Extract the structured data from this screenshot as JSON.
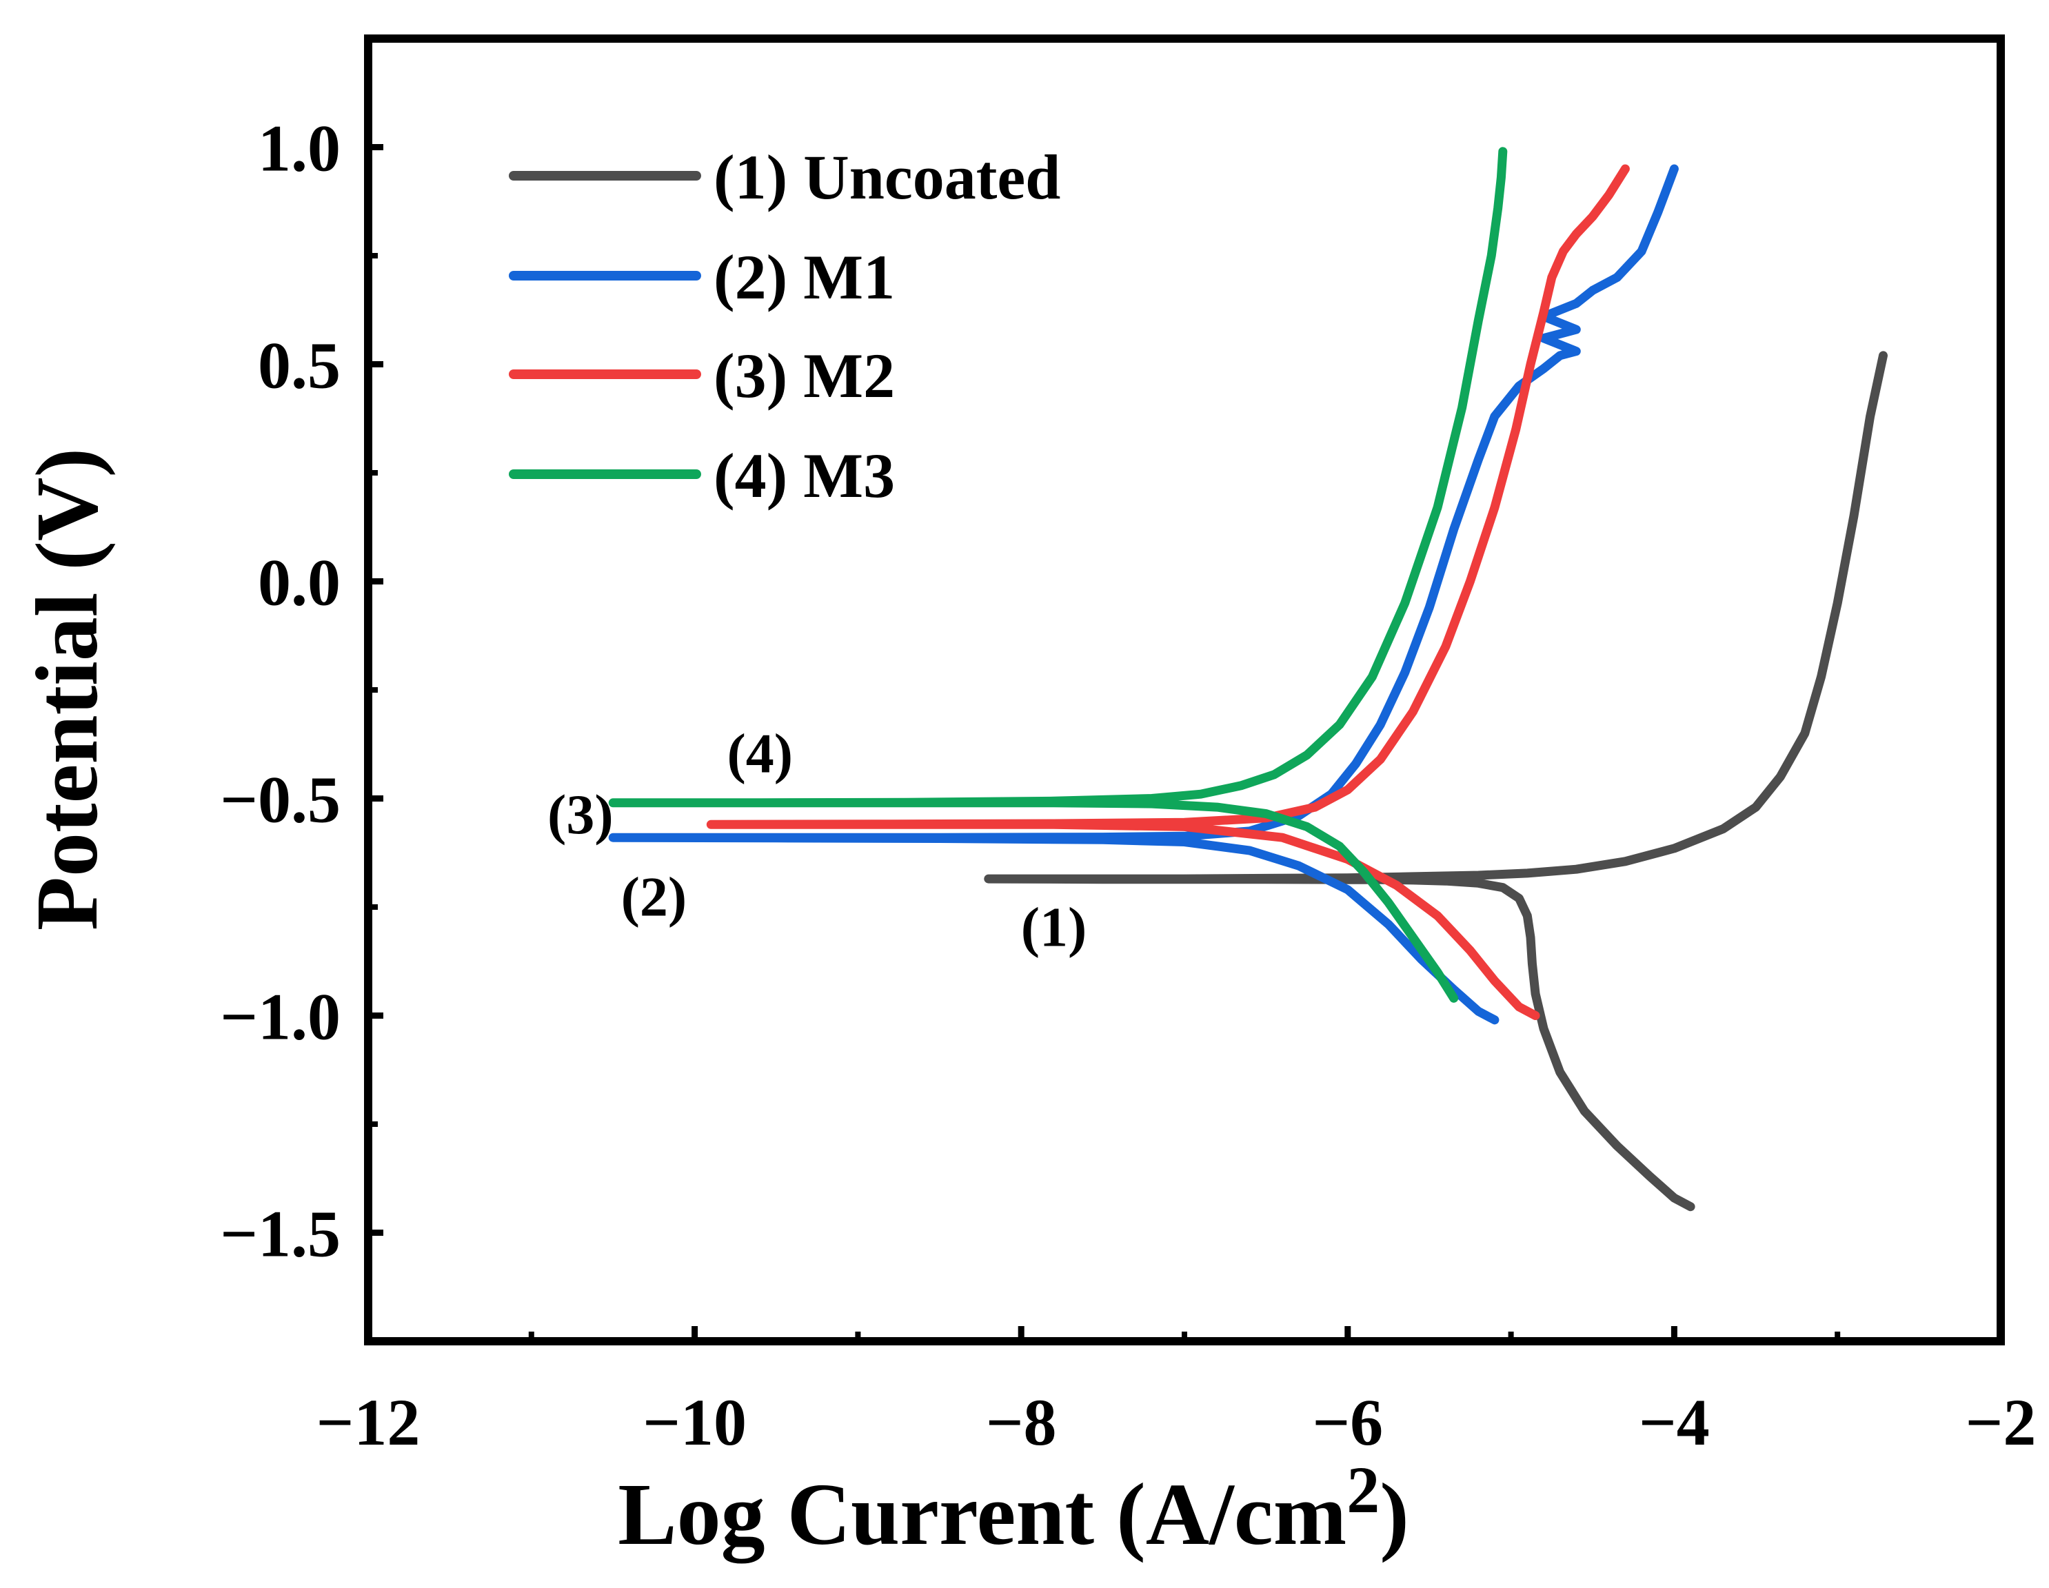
{
  "chart_data": {
    "type": "line",
    "title": "",
    "xlabel": "Log Current (A/cm",
    "xlabel_sup": "2",
    "xlabel_close": ")",
    "ylabel": "Potential (V)",
    "xlim": [
      -12,
      -2
    ],
    "ylim": [
      -1.75,
      1.25
    ],
    "x_ticks": [
      -12,
      -10,
      -8,
      -6,
      -4,
      -2
    ],
    "x_tick_labels": [
      "−12",
      "−10",
      "−8",
      "−6",
      "−4",
      "−2"
    ],
    "y_ticks": [
      1.0,
      0.5,
      0.0,
      -0.5,
      -1.0,
      -1.5
    ],
    "y_tick_labels": [
      "1.0",
      "0.5",
      "0.0",
      "−0.5",
      "−1.0",
      "−1.5"
    ],
    "grid": false,
    "legend_position": "top-left",
    "series": [
      {
        "name": "(1) Uncoated",
        "color": "#4d4d4d",
        "annotation": "(1)",
        "x": [
          -3.9,
          -4.0,
          -4.15,
          -4.35,
          -4.55,
          -4.7,
          -4.8,
          -4.85,
          -4.87,
          -4.88,
          -4.9,
          -4.95,
          -5.05,
          -5.2,
          -5.4,
          -5.6,
          -5.8,
          -6.0,
          -6.5,
          -7.0,
          -7.5,
          -8.2,
          -7.5,
          -7.0,
          -6.5,
          -6.0,
          -5.6,
          -5.2,
          -4.9,
          -4.6,
          -4.3,
          -4.0,
          -3.7,
          -3.5,
          -3.35,
          -3.2,
          -3.1,
          -3.0,
          -2.9,
          -2.8,
          -2.72
        ],
        "y": [
          -1.44,
          -1.42,
          -1.37,
          -1.3,
          -1.22,
          -1.13,
          -1.03,
          -0.95,
          -0.88,
          -0.82,
          -0.77,
          -0.73,
          -0.705,
          -0.695,
          -0.69,
          -0.688,
          -0.687,
          -0.687,
          -0.686,
          -0.686,
          -0.686,
          -0.685,
          -0.685,
          -0.685,
          -0.684,
          -0.683,
          -0.68,
          -0.677,
          -0.672,
          -0.663,
          -0.645,
          -0.615,
          -0.57,
          -0.52,
          -0.45,
          -0.35,
          -0.22,
          -0.05,
          0.15,
          0.38,
          0.52
        ]
      },
      {
        "name": "(2) M1",
        "color": "#1565d8",
        "annotation": "(2)",
        "x": [
          -5.1,
          -5.2,
          -5.35,
          -5.55,
          -5.75,
          -6.0,
          -6.3,
          -6.6,
          -7.0,
          -7.5,
          -8.5,
          -9.5,
          -10.5,
          -9.5,
          -8.5,
          -7.5,
          -7.0,
          -6.6,
          -6.3,
          -6.1,
          -5.95,
          -5.8,
          -5.65,
          -5.5,
          -5.35,
          -5.2,
          -5.1,
          -4.95,
          -4.8,
          -4.7,
          -4.6,
          -4.8,
          -4.6,
          -4.8,
          -4.6,
          -4.5,
          -4.35,
          -4.2,
          -4.1,
          -4.0
        ],
        "y": [
          -1.01,
          -0.99,
          -0.94,
          -0.87,
          -0.79,
          -0.71,
          -0.655,
          -0.62,
          -0.6,
          -0.595,
          -0.592,
          -0.591,
          -0.59,
          -0.59,
          -0.59,
          -0.589,
          -0.587,
          -0.575,
          -0.54,
          -0.49,
          -0.42,
          -0.33,
          -0.21,
          -0.06,
          0.12,
          0.28,
          0.38,
          0.45,
          0.49,
          0.52,
          0.53,
          0.56,
          0.58,
          0.61,
          0.64,
          0.67,
          0.7,
          0.76,
          0.85,
          0.95
        ]
      },
      {
        "name": "(3) M2",
        "color": "#ef3c3c",
        "annotation": "(3)",
        "x": [
          -4.85,
          -4.95,
          -5.1,
          -5.25,
          -5.45,
          -5.7,
          -6.0,
          -6.4,
          -7.0,
          -7.8,
          -8.8,
          -9.9,
          -8.8,
          -7.8,
          -7.0,
          -6.5,
          -6.2,
          -6.0,
          -5.8,
          -5.6,
          -5.4,
          -5.25,
          -5.1,
          -4.97,
          -4.88,
          -4.8,
          -4.75,
          -4.68,
          -4.6,
          -4.5,
          -4.4,
          -4.3
        ],
        "y": [
          -1.0,
          -0.98,
          -0.92,
          -0.85,
          -0.77,
          -0.7,
          -0.64,
          -0.59,
          -0.565,
          -0.56,
          -0.56,
          -0.56,
          -0.559,
          -0.558,
          -0.555,
          -0.545,
          -0.52,
          -0.48,
          -0.41,
          -0.3,
          -0.15,
          0.0,
          0.17,
          0.35,
          0.5,
          0.62,
          0.7,
          0.76,
          0.8,
          0.84,
          0.89,
          0.95
        ]
      },
      {
        "name": "(4) M3",
        "color": "#0fa65a",
        "annotation": "(4)",
        "x": [
          -5.35,
          -5.45,
          -5.6,
          -5.75,
          -5.9,
          -6.05,
          -6.25,
          -6.5,
          -6.8,
          -7.2,
          -7.8,
          -8.7,
          -9.6,
          -10.5,
          -9.6,
          -8.7,
          -7.8,
          -7.2,
          -6.9,
          -6.65,
          -6.45,
          -6.25,
          -6.05,
          -5.85,
          -5.65,
          -5.45,
          -5.3,
          -5.2,
          -5.12,
          -5.08,
          -5.06,
          -5.05
        ],
        "y": [
          -0.96,
          -0.9,
          -0.82,
          -0.74,
          -0.67,
          -0.61,
          -0.565,
          -0.535,
          -0.52,
          -0.512,
          -0.51,
          -0.51,
          -0.51,
          -0.51,
          -0.51,
          -0.509,
          -0.506,
          -0.5,
          -0.49,
          -0.47,
          -0.445,
          -0.4,
          -0.33,
          -0.22,
          -0.05,
          0.17,
          0.4,
          0.6,
          0.75,
          0.86,
          0.93,
          0.99
        ]
      }
    ]
  }
}
